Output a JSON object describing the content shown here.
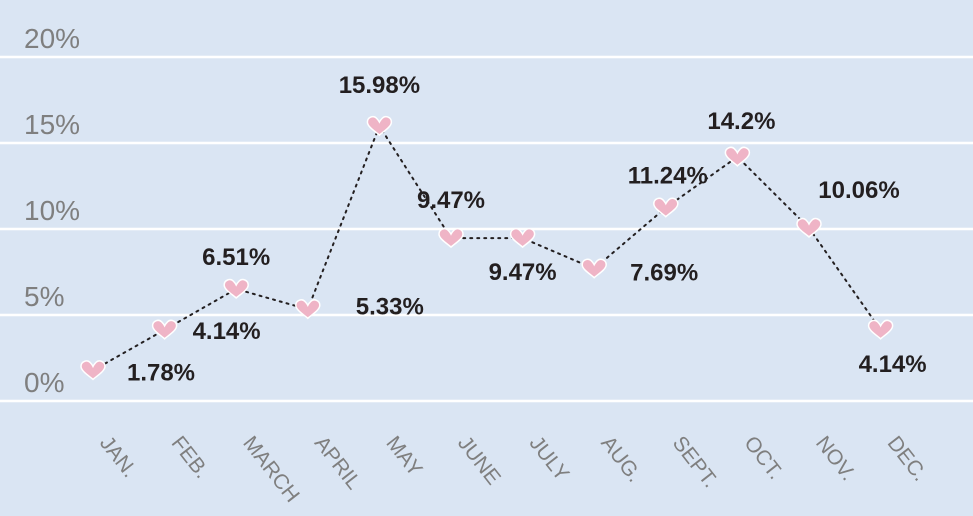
{
  "chart_data": {
    "type": "line",
    "categories": [
      "JAN.",
      "FEB.",
      "MARCH",
      "APRIL",
      "MAY",
      "JUNE",
      "JULY",
      "AUG.",
      "SEPT.",
      "OCT.",
      "NOV.",
      "DEC."
    ],
    "values": [
      1.78,
      4.14,
      6.51,
      5.33,
      15.98,
      9.47,
      9.47,
      7.69,
      11.24,
      14.2,
      10.06,
      4.14
    ],
    "data_labels": [
      "1.78%",
      "4.14%",
      "6.51%",
      "5.33%",
      "15.98%",
      "9.47%",
      "9.47%",
      "7.69%",
      "11.24%",
      "14.2%",
      "10.06%",
      "4.14%"
    ],
    "y_ticks": [
      "0%",
      "5%",
      "10%",
      "15%",
      "20%"
    ],
    "ylim": [
      0,
      20
    ],
    "grid": true,
    "marker": "heart",
    "colors": {
      "background": "#dae5f3",
      "marker": "#efb4c6",
      "line": "#231f20",
      "gridline": "#ffffff",
      "tick_text": "#7f7f7f"
    }
  }
}
